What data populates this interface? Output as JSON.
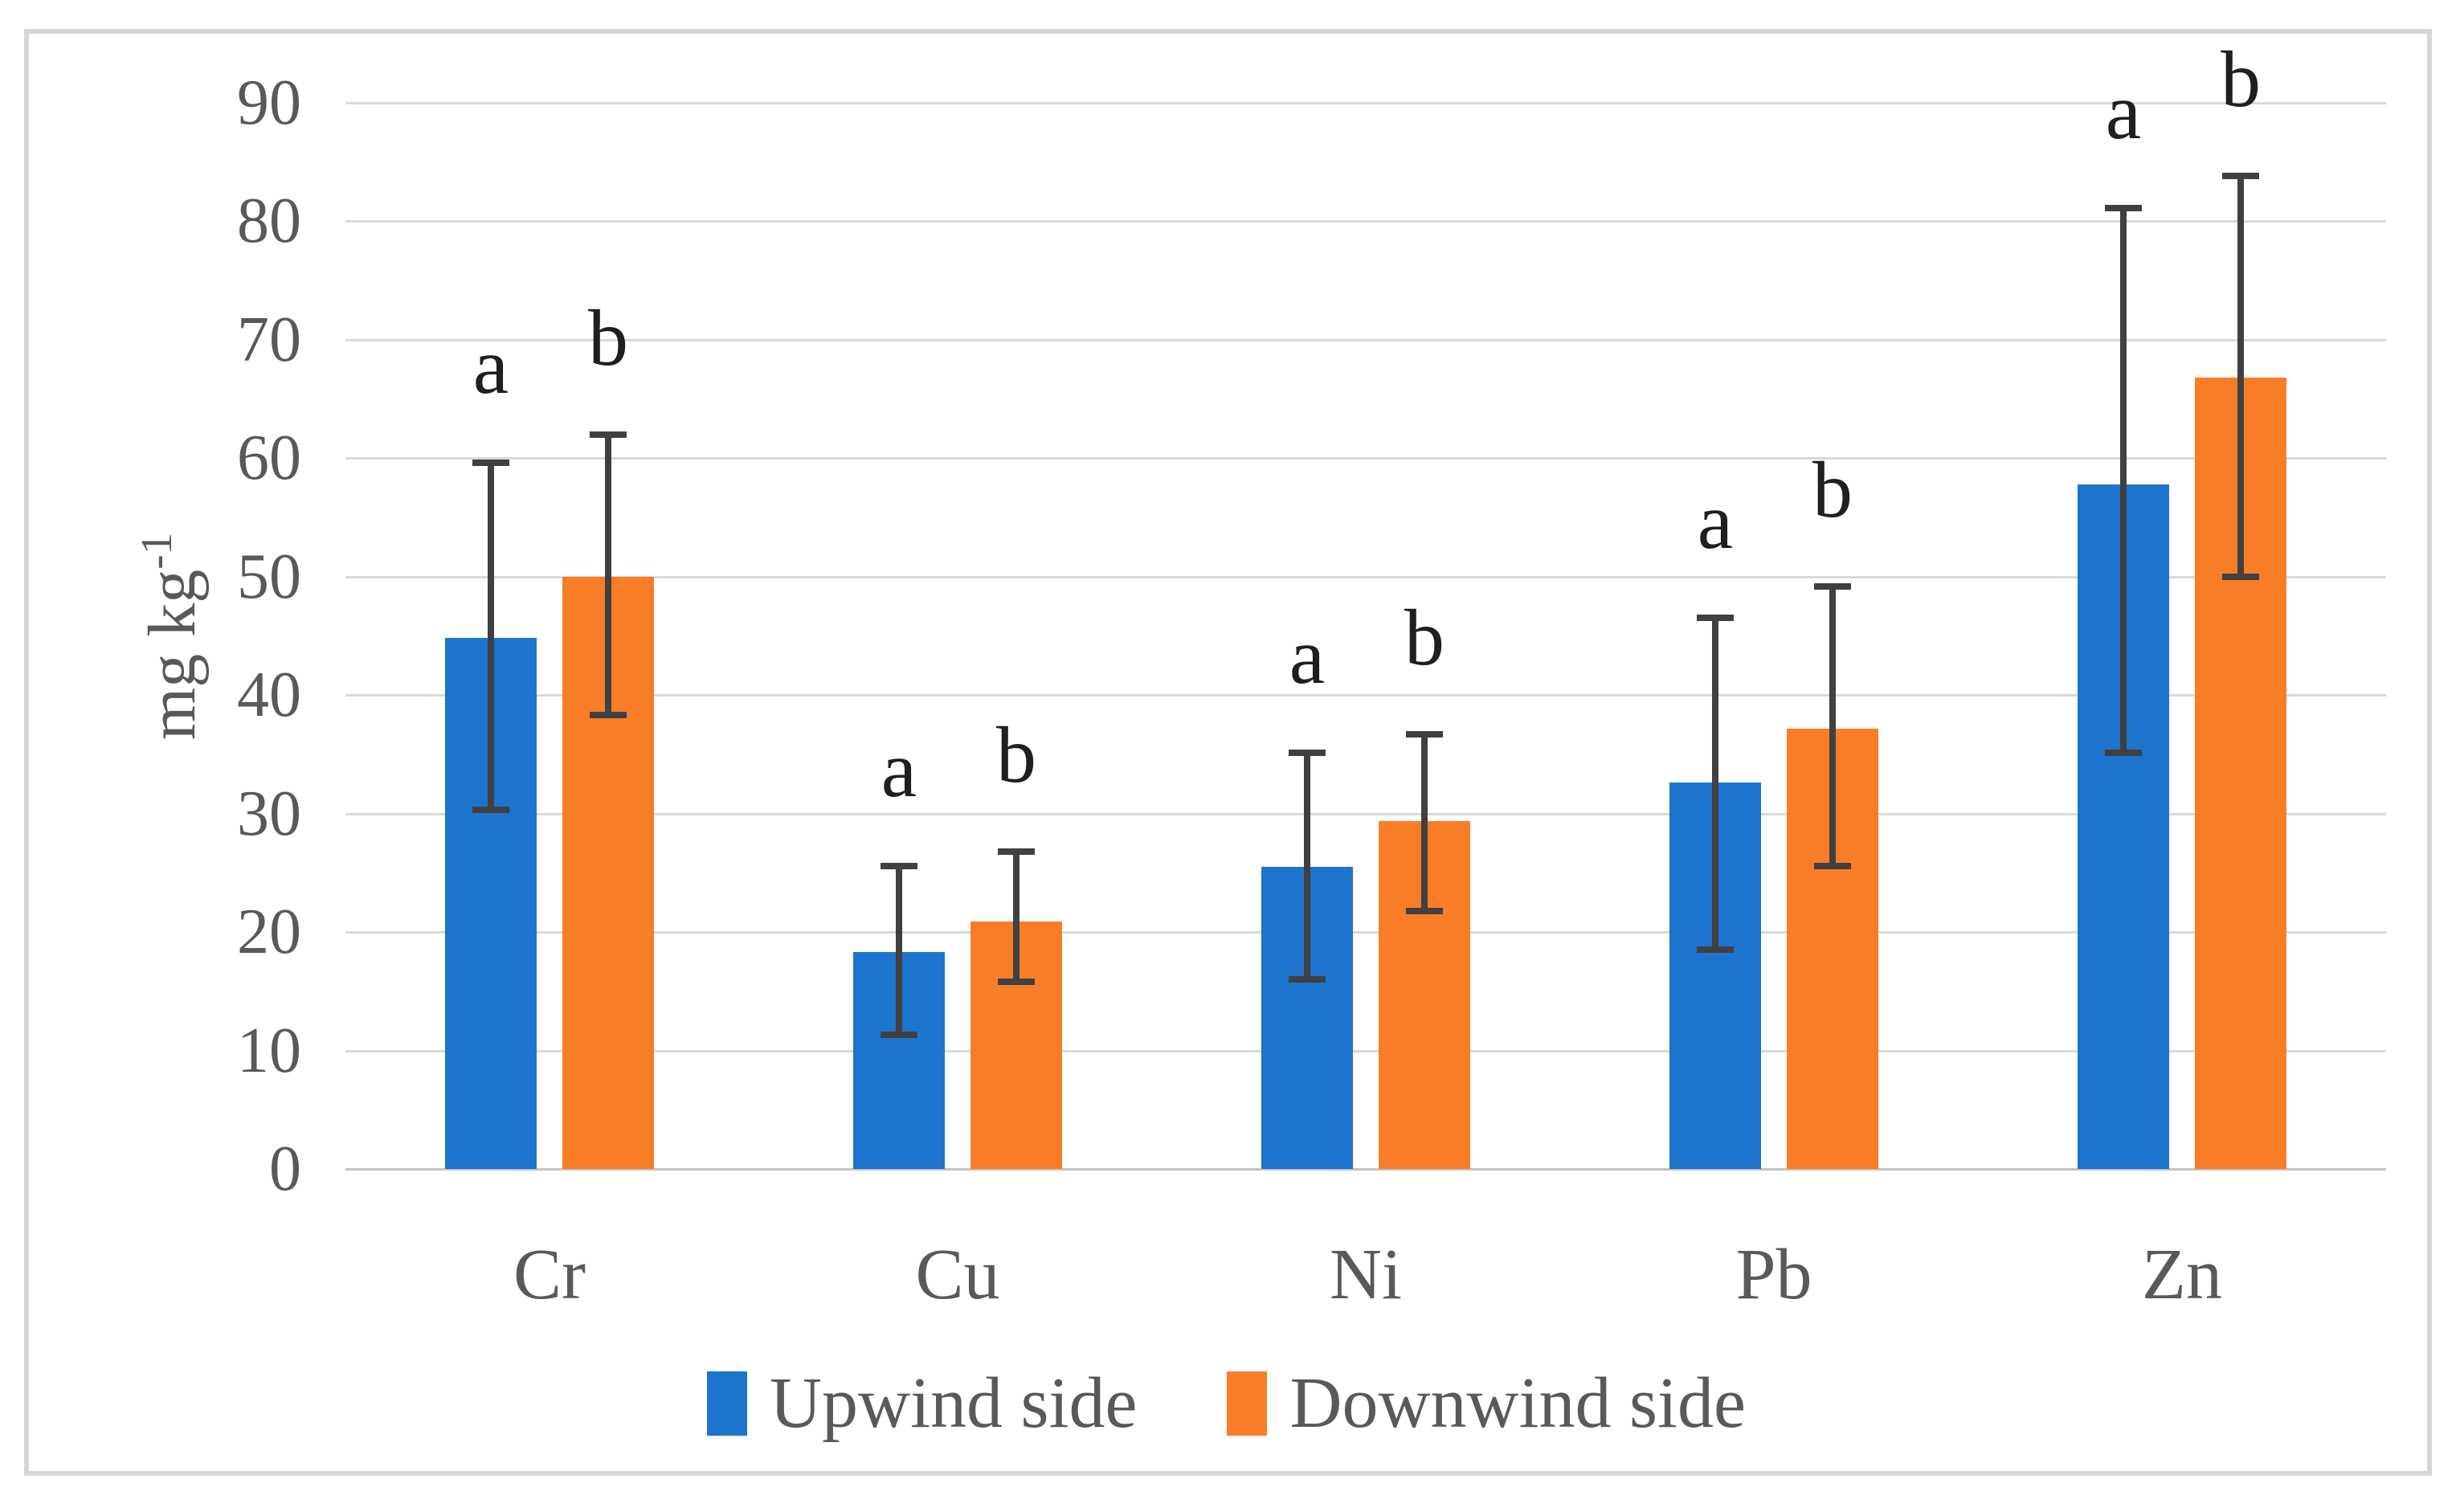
{
  "chart_data": {
    "type": "bar",
    "title": "",
    "xlabel": "",
    "ylabel": "mg kg⁻¹",
    "y_title_parts": {
      "base": "mg kg",
      "superscript": "-1"
    },
    "categories": [
      "Cr",
      "Cu",
      "Ni",
      "Pb",
      "Zn"
    ],
    "series": [
      {
        "name": "Upwind side",
        "color": "#1c74cd",
        "sig_letter": "a",
        "values": [
          44.8,
          18.3,
          25.5,
          32.6,
          57.8
        ],
        "err_low": [
          30.3,
          11.3,
          16.0,
          18.5,
          35.1
        ],
        "err_high": [
          59.6,
          25.6,
          35.1,
          46.5,
          81.1
        ]
      },
      {
        "name": "Downwind side",
        "color": "#f97d26",
        "sig_letter": "b",
        "values": [
          50.0,
          20.9,
          29.4,
          37.2,
          66.8
        ],
        "err_low": [
          38.3,
          15.8,
          21.8,
          25.6,
          50.0
        ],
        "err_high": [
          62.0,
          26.8,
          36.7,
          49.2,
          83.8
        ]
      }
    ],
    "ylim": [
      0,
      90
    ],
    "ytick_step": 10,
    "yticks": [
      0,
      10,
      20,
      30,
      40,
      50,
      60,
      70,
      80,
      90
    ],
    "grid": true,
    "error_bars": true,
    "legend_position": "bottom"
  },
  "styles": {
    "upwind_color": "#1c74cd",
    "downwind_color": "#f97d26",
    "error_bar_color": "#404040",
    "axis_text_color": "#595959",
    "letter_color": "#1f1f1f",
    "gridline_color": "#d9d9d9",
    "zero_line_color": "#c3c3c3",
    "border_color": "#d6d6d6"
  }
}
